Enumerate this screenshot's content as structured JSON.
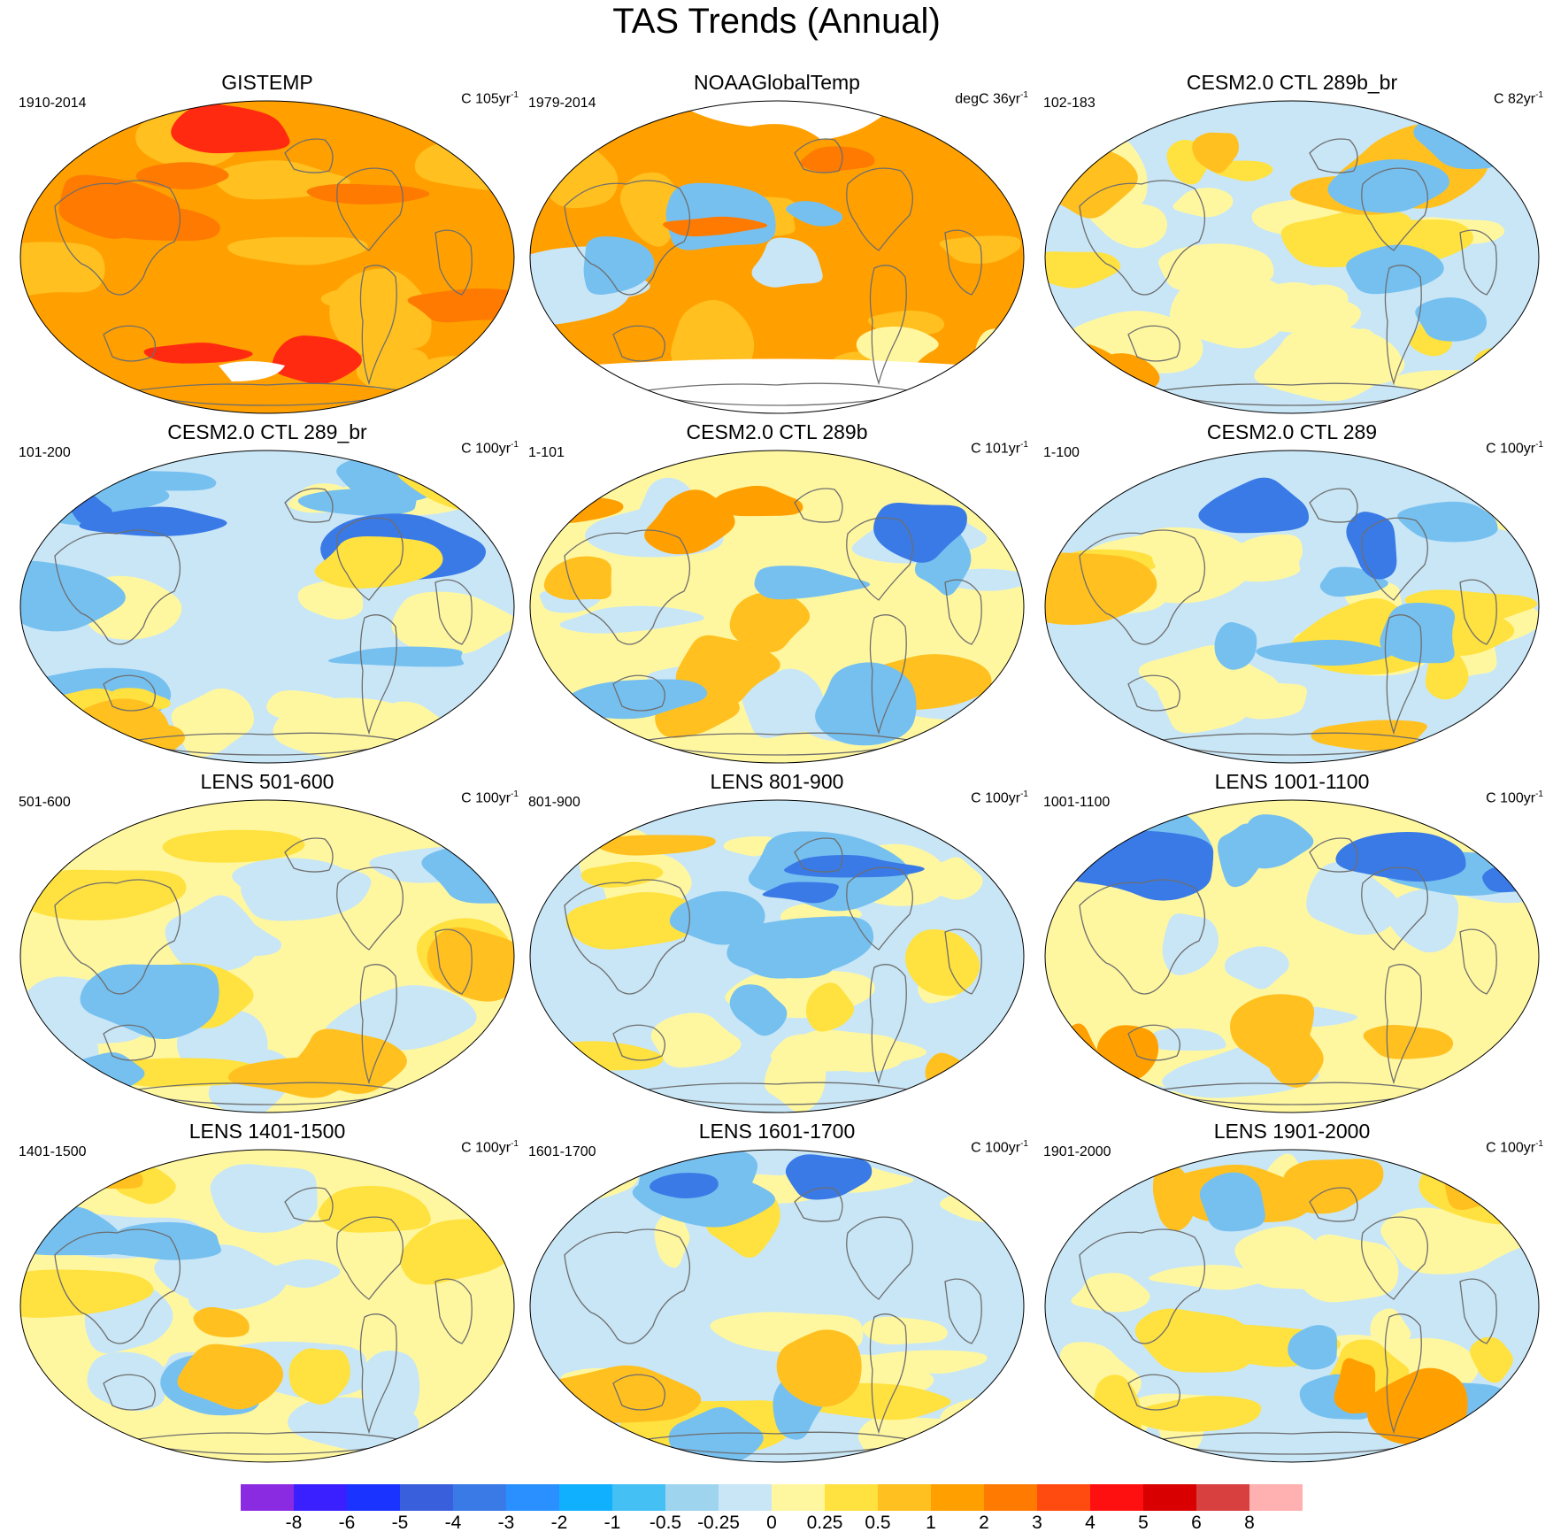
{
  "title": "TAS Trends (Annual)",
  "panels": [
    {
      "title": "GISTEMP",
      "period": "1910-2014",
      "unit": "C 105yr",
      "unit_exp": "-1",
      "style": "warm-strong"
    },
    {
      "title": "NOAAGlobalTemp",
      "period": "1979-2014",
      "unit": "degC 36yr",
      "unit_exp": "-1",
      "style": "noaa"
    },
    {
      "title": "CESM2.0 CTL 289b_br",
      "period": "102-183",
      "unit": "C 82yr",
      "unit_exp": "-1",
      "style": "mixed-warm"
    },
    {
      "title": "CESM2.0 CTL 289_br",
      "period": "101-200",
      "unit": "C 100yr",
      "unit_exp": "-1",
      "style": "mixed-cool"
    },
    {
      "title": "CESM2.0 CTL 289b",
      "period": "1-101",
      "unit": "C 101yr",
      "unit_exp": "-1",
      "style": "mixed-warm-north"
    },
    {
      "title": "CESM2.0 CTL 289",
      "period": "1-100",
      "unit": "C 100yr",
      "unit_exp": "-1",
      "style": "mixed"
    },
    {
      "title": "LENS 501-600",
      "period": "501-600",
      "unit": "C 100yr",
      "unit_exp": "-1",
      "style": "mixed-yellow"
    },
    {
      "title": "LENS 801-900",
      "period": "801-900",
      "unit": "C 100yr",
      "unit_exp": "-1",
      "style": "mixed"
    },
    {
      "title": "LENS 1001-1100",
      "period": "1001-1100",
      "unit": "C 100yr",
      "unit_exp": "-1",
      "style": "mixed-cool-north"
    },
    {
      "title": "LENS 1401-1500",
      "period": "1401-1500",
      "unit": "C 100yr",
      "unit_exp": "-1",
      "style": "mixed-yellow"
    },
    {
      "title": "LENS 1601-1700",
      "period": "1601-1700",
      "unit": "C 100yr",
      "unit_exp": "-1",
      "style": "mixed"
    },
    {
      "title": "LENS 1901-2000",
      "period": "1901-2000",
      "unit": "C 100yr",
      "unit_exp": "-1",
      "style": "mixed-warm"
    }
  ],
  "colorbar": {
    "labels": [
      "-8",
      "-6",
      "-5",
      "-4",
      "-3",
      "-2",
      "-1",
      "-0.5",
      "-0.25",
      "0",
      "0.25",
      "0.5",
      "1",
      "2",
      "3",
      "4",
      "5",
      "6",
      "8"
    ],
    "colors": [
      "#8a2be2",
      "#3a1fff",
      "#1a33ff",
      "#3a5fdd",
      "#3a7ae6",
      "#2a90ff",
      "#10b0ff",
      "#45c0f5",
      "#9fd4ee",
      "#c8e6f6",
      "#fff7a0",
      "#ffe13f",
      "#ffc020",
      "#ffa000",
      "#ff7a00",
      "#ff4a10",
      "#ff1010",
      "#d80000",
      "#d84040",
      "#ffb0b0"
    ]
  },
  "palette": {
    "land_outline": "#6e6e6e",
    "missing": "#ffffff",
    "deep_blue": "#3a7ae6",
    "mid_blue": "#76c0f0",
    "light_blue": "#c8e6f6",
    "pale_yellow": "#fff7a0",
    "yellow": "#ffe13f",
    "gold": "#ffc020",
    "orange": "#ffa000",
    "dark_orange": "#ff7a00",
    "red": "#ff2a10"
  }
}
